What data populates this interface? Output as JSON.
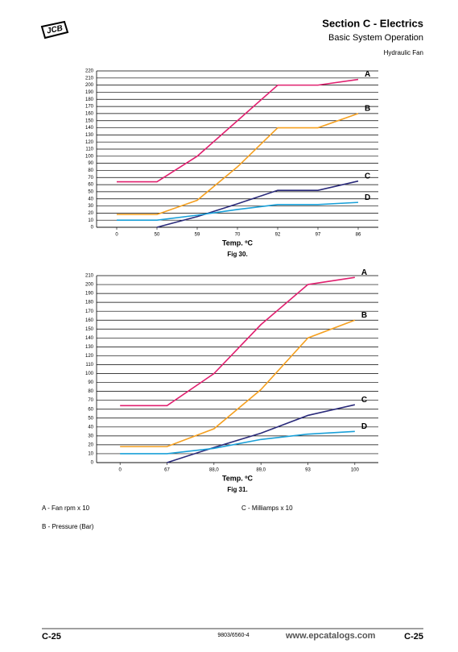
{
  "header": {
    "logo": "JCB",
    "section": "Section C - Electrics",
    "subsection": "Basic System Operation",
    "topic": "Hydraulic Fan"
  },
  "chart_data": [
    {
      "type": "line",
      "caption": "Fig 30.",
      "xlabel": "Temp. ºC",
      "categories": [
        "0",
        "50",
        "59",
        "70",
        "92",
        "97",
        "86"
      ],
      "series": [
        {
          "name": "A",
          "color": "#e0206f",
          "values": [
            64,
            64,
            100,
            150,
            200,
            200,
            208
          ]
        },
        {
          "name": "B",
          "color": "#f5a020",
          "values": [
            18,
            18,
            38,
            85,
            140,
            140,
            160
          ]
        },
        {
          "name": "C",
          "color": "#2a2a7a",
          "values": [
            null,
            0,
            15,
            33,
            52,
            52,
            65
          ]
        },
        {
          "name": "D",
          "color": "#1aa0d8",
          "values": [
            10,
            10,
            17,
            25,
            32,
            32,
            35
          ]
        }
      ],
      "ylim": [
        0,
        220
      ],
      "yticks": [
        0,
        10,
        20,
        30,
        40,
        50,
        60,
        70,
        80,
        90,
        100,
        110,
        120,
        130,
        140,
        150,
        160,
        170,
        180,
        190,
        200,
        210,
        220
      ],
      "grid": true
    },
    {
      "type": "line",
      "caption": "Fig 31.",
      "xlabel": "Temp. ºC",
      "categories": [
        "0",
        "67",
        "88,0",
        "89,0",
        "93",
        "100"
      ],
      "series": [
        {
          "name": "A",
          "color": "#e0206f",
          "values": [
            64,
            64,
            100,
            155,
            200,
            208
          ]
        },
        {
          "name": "B",
          "color": "#f5a020",
          "values": [
            18,
            18,
            38,
            82,
            140,
            160
          ]
        },
        {
          "name": "C",
          "color": "#2a2a7a",
          "values": [
            null,
            0,
            17,
            33,
            53,
            65
          ]
        },
        {
          "name": "D",
          "color": "#1aa0d8",
          "values": [
            10,
            10,
            16,
            26,
            32,
            35
          ]
        }
      ],
      "ylim": [
        0,
        210
      ],
      "yticks": [
        0,
        10,
        20,
        30,
        40,
        50,
        60,
        70,
        80,
        90,
        100,
        110,
        120,
        130,
        140,
        150,
        160,
        170,
        180,
        190,
        200,
        210
      ],
      "grid": true
    }
  ],
  "notes": [
    "A - Fan rpm x 10",
    "C - Milliamps x 10",
    "B - Pressure (Bar)"
  ],
  "footer": {
    "page_left": "C-25",
    "doc_number": "9803/6560-4",
    "watermark": "www.epcatalogs.com",
    "page_right": "C-25"
  }
}
